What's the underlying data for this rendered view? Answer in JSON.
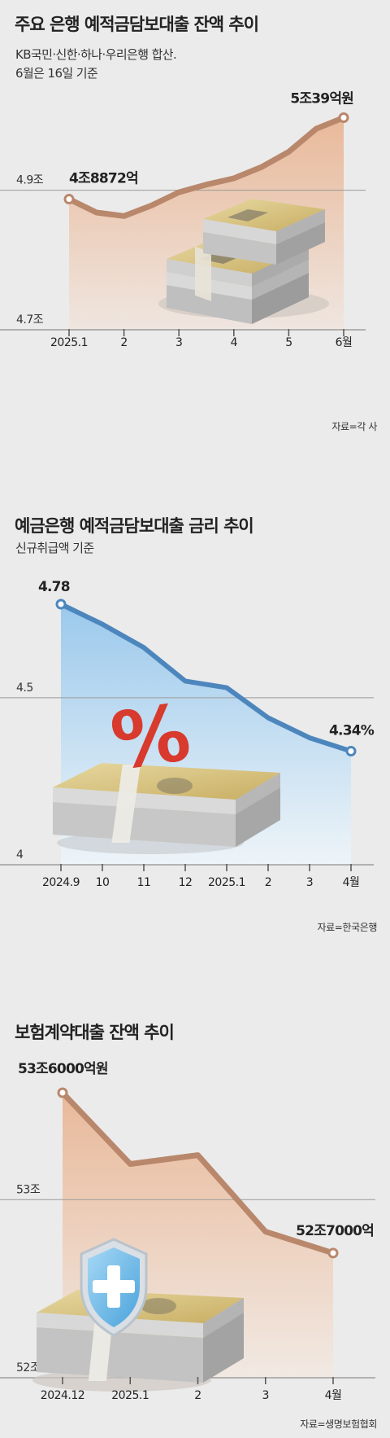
{
  "charts": [
    {
      "title": "주요 은행 예적금담보대출 잔액 추이",
      "subtitles": [
        "KB국민·신한·하나·우리은행 합산.",
        "6월은 16일 기준"
      ],
      "source": "자료=각 사",
      "colors": {
        "line": "#b9876b",
        "fill_top": "#e9b99a",
        "fill_bottom": "#efe6e0",
        "grid": "#9a9a9a"
      }
    },
    {
      "title": "예금은행 예적금담보대출 금리 추이",
      "subtitles": [
        "신규취급액 기준"
      ],
      "source": "자료=한국은행",
      "colors": {
        "line": "#4d86bd",
        "fill_top": "#9bc9ec",
        "fill_bottom": "#eef4f8",
        "grid": "#9a9a9a"
      }
    },
    {
      "title": "보험계약대출 잔액 추이",
      "subtitles": [],
      "source": "자료=생명보험협회",
      "colors": {
        "line": "#b9876b",
        "fill_top": "#e9b99a",
        "fill_bottom": "#f1e9e3",
        "grid": "#9a9a9a"
      }
    }
  ],
  "chart_data": [
    {
      "type": "area",
      "title": "주요 은행 예적금담보대출 잔액 추이",
      "x": [
        "2025.1",
        "",
        "2",
        "",
        "3",
        "",
        "4",
        "",
        "5",
        "",
        "6월"
      ],
      "x_tick_labels": [
        "2025.1",
        "2",
        "3",
        "4",
        "5",
        "6월"
      ],
      "y_unit": "조원",
      "y_ticks": [
        {
          "value": 4.9,
          "label": "4.9조"
        },
        {
          "value": 4.7,
          "label": "4.7조"
        }
      ],
      "ylim": [
        4.7,
        5.05
      ],
      "grid": true,
      "series": [
        {
          "values": [
            4.8872,
            4.868,
            4.863,
            4.878,
            4.897,
            4.908,
            4.917,
            4.933,
            4.955,
            4.988,
            5.0039
          ]
        }
      ],
      "labels": [
        {
          "index": 0,
          "text": "4조8872억"
        },
        {
          "index": 10,
          "text": "5조39억원"
        }
      ]
    },
    {
      "type": "area",
      "title": "예금은행 예적금담보대출 금리 추이",
      "x": [
        "2024.9",
        "10",
        "11",
        "12",
        "2025.1",
        "2",
        "3",
        "4월"
      ],
      "x_tick_labels": [
        "2024.9",
        "11",
        "2025.1",
        "4월"
      ],
      "y_unit": "%",
      "y_ticks": [
        {
          "value": 4.5,
          "label": "4.5"
        },
        {
          "value": 4,
          "label": "4"
        }
      ],
      "ylim": [
        4.0,
        4.78
      ],
      "grid": true,
      "series": [
        {
          "values": [
            4.78,
            4.72,
            4.65,
            4.55,
            4.53,
            4.44,
            4.38,
            4.34
          ]
        }
      ],
      "labels": [
        {
          "index": 0,
          "text": "4.78"
        },
        {
          "index": 7,
          "text": "4.34%"
        }
      ]
    },
    {
      "type": "area",
      "title": "보험계약대출 잔액 추이",
      "x": [
        "2024.12",
        "2025.1",
        "2",
        "3",
        "4월"
      ],
      "x_tick_labels": [
        "2024.12",
        "2025.1",
        "2",
        "3",
        "4월"
      ],
      "y_unit": "조원",
      "y_ticks": [
        {
          "value": 53,
          "label": "53조"
        },
        {
          "value": 52,
          "label": "52조"
        }
      ],
      "ylim": [
        52,
        53.6
      ],
      "grid": true,
      "series": [
        {
          "values": [
            53.6,
            53.2,
            53.25,
            52.82,
            52.7
          ]
        }
      ],
      "labels": [
        {
          "index": 0,
          "text": "53조6000억원"
        },
        {
          "index": 4,
          "text": "52조7000억"
        }
      ]
    }
  ]
}
